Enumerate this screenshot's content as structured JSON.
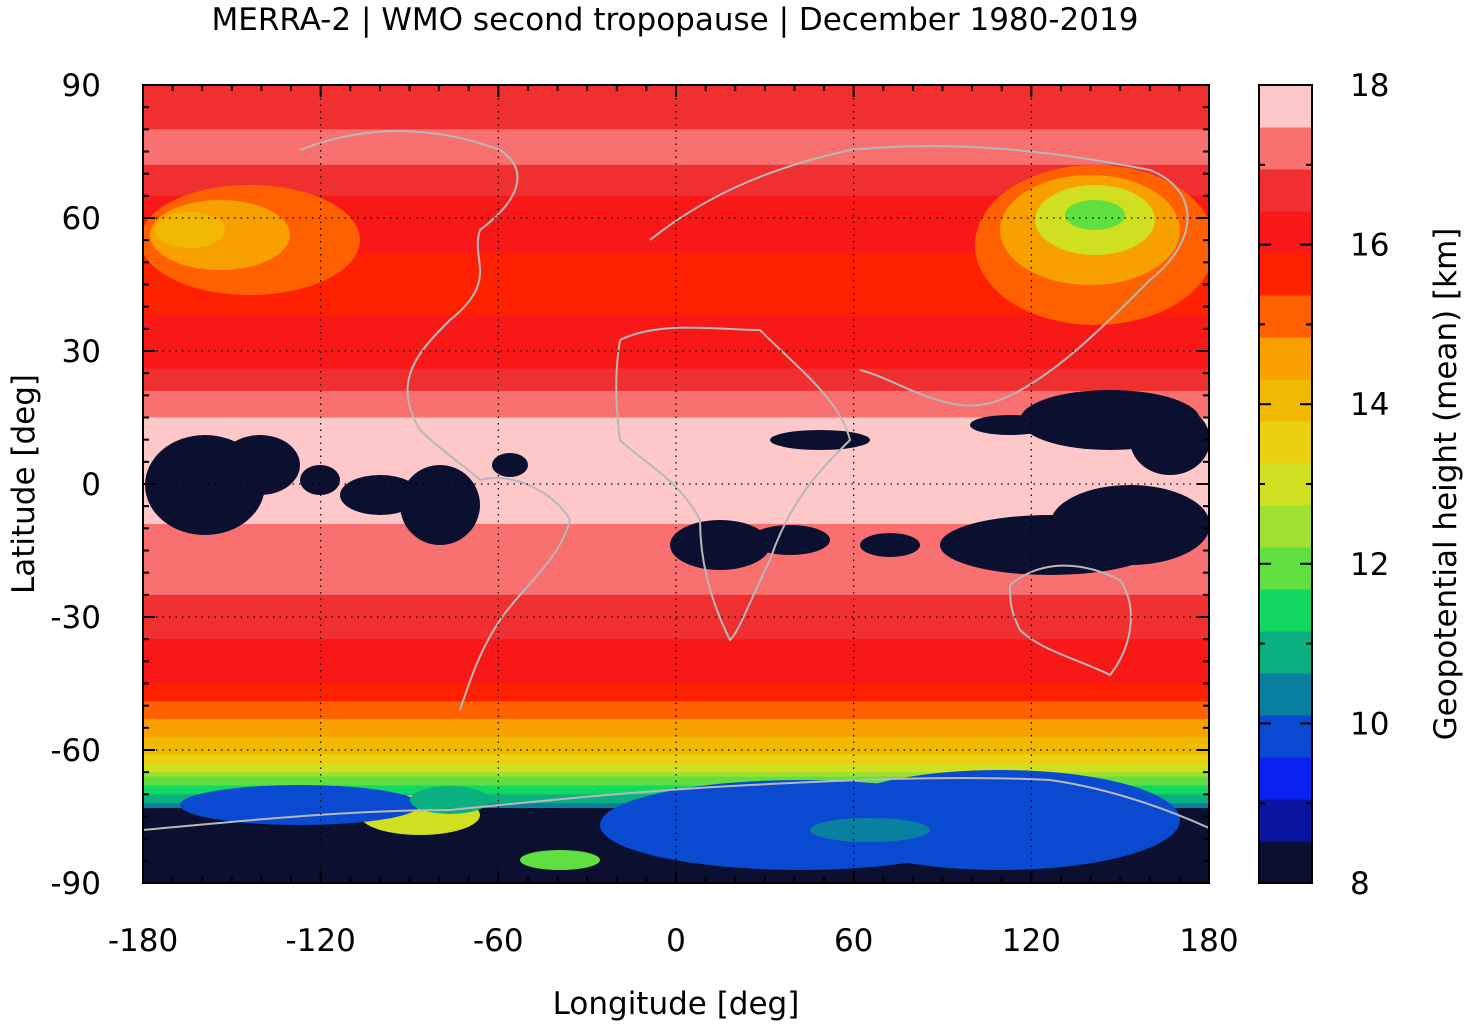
{
  "chart_data": {
    "type": "heatmap",
    "title": "MERRA-2 | WMO second tropopause | December 1980-2019",
    "xlabel": "Longitude [deg]",
    "ylabel": "Latitude [deg]",
    "colorbar_label": "Geopotential height (mean) [km]",
    "xlim": [
      -180,
      180
    ],
    "ylim": [
      -90,
      90
    ],
    "x_ticks": [
      -180,
      -120,
      -60,
      0,
      60,
      120,
      180
    ],
    "y_ticks": [
      -90,
      -60,
      -30,
      0,
      30,
      60,
      90
    ],
    "colorbar_range": [
      8,
      18
    ],
    "colorbar_ticks": [
      8,
      10,
      12,
      14,
      16,
      18
    ],
    "grid": true,
    "colorbar_colors": [
      "#0b1030",
      "#0a14a0",
      "#0a22f0",
      "#0a4ad0",
      "#0a80a0",
      "#0ab080",
      "#10d860",
      "#60e040",
      "#a0e030",
      "#d0e020",
      "#ead010",
      "#f0b800",
      "#f8a000",
      "#ff6000",
      "#ff2000",
      "#f81818",
      "#f03030",
      "#f87070",
      "#ffc8c8"
    ],
    "zonal_mean_km": [
      {
        "lat": 90,
        "value": 16.4
      },
      {
        "lat": 75,
        "value": 17.2
      },
      {
        "lat": 60,
        "value": 16.0
      },
      {
        "lat": 45,
        "value": 15.8
      },
      {
        "lat": 30,
        "value": 16.0
      },
      {
        "lat": 15,
        "value": 17.5
      },
      {
        "lat": 0,
        "value": 17.6
      },
      {
        "lat": -15,
        "value": 17.4
      },
      {
        "lat": -30,
        "value": 16.7
      },
      {
        "lat": -45,
        "value": 15.9
      },
      {
        "lat": -55,
        "value": 14.6
      },
      {
        "lat": -62,
        "value": 13.6
      },
      {
        "lat": -70,
        "value": 11.0
      },
      {
        "lat": -80,
        "value": 9.0
      },
      {
        "lat": -90,
        "value": 8.0
      }
    ],
    "missing_data_color": "#0b1030"
  }
}
